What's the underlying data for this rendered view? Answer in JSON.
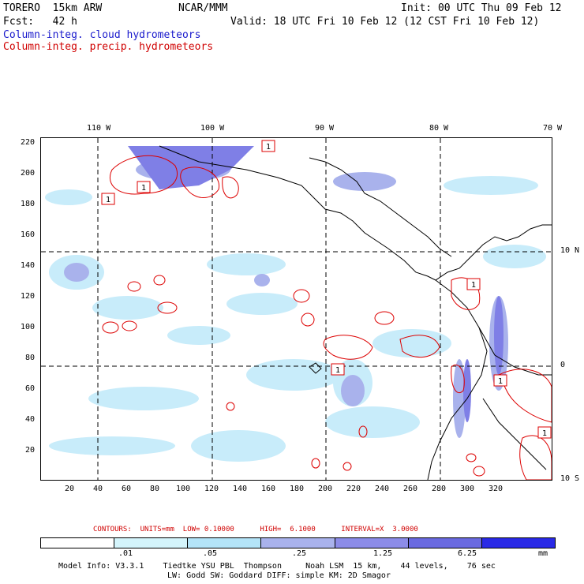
{
  "header": {
    "model": "TORERO  15km ARW",
    "org": "NCAR/MMM",
    "init": "Init: 00 UTC Thu 09 Feb 12",
    "fcst": "Fcst:   42 h",
    "valid": "Valid: 18 UTC Fri 10 Feb 12 (12 CST Fri 10 Feb 12)",
    "field1": "Column-integ. cloud hydrometeors",
    "field2": "Column-integ. precip. hydrometeors"
  },
  "map": {
    "top_lon_labels": [
      "110 W",
      "100 W",
      "90 W",
      "80 W",
      "70 W"
    ],
    "right_lat_labels": [
      "10 N",
      "0",
      "10 S"
    ],
    "y_ticks": [
      "220",
      "200",
      "180",
      "160",
      "140",
      "120",
      "100",
      "80",
      "60",
      "40",
      "20"
    ],
    "x_ticks": [
      "20",
      "40",
      "60",
      "80",
      "100",
      "120",
      "140",
      "160",
      "180",
      "200",
      "220",
      "240",
      "260",
      "280",
      "300",
      "320"
    ],
    "contour_labels": [
      "1",
      "1",
      "1",
      "1",
      "1",
      "1",
      "1"
    ],
    "colors": {
      "cloud_light": "#c8ecfa",
      "cloud_mid": "#a7b2ee",
      "cloud_dark": "#7f7fe6",
      "precip_contour": "#dd0000",
      "coast": "#000000"
    }
  },
  "contours_info": {
    "text": "CONTOURS:  UNITS=mm  LOW= 0.10000      HIGH=  6.1000      INTERVAL=X  3.0000"
  },
  "legend": {
    "levels": [
      ".01",
      ".05",
      ".25",
      "1.25",
      "6.25"
    ],
    "units": "mm",
    "colors": [
      "#ffffff",
      "#d4f4fb",
      "#b4e4f8",
      "#a9b2ec",
      "#8c8ce8",
      "#6a6ae0",
      "#2a2ae6"
    ]
  },
  "footer": {
    "line1": "Model Info: V3.3.1    Tiedtke YSU PBL  Thompson     Noah LSM  15 km,    44 levels,    76 sec",
    "line2": "LW: Godd SW: Goddard DIFF: simple KM: 2D Smagor"
  }
}
